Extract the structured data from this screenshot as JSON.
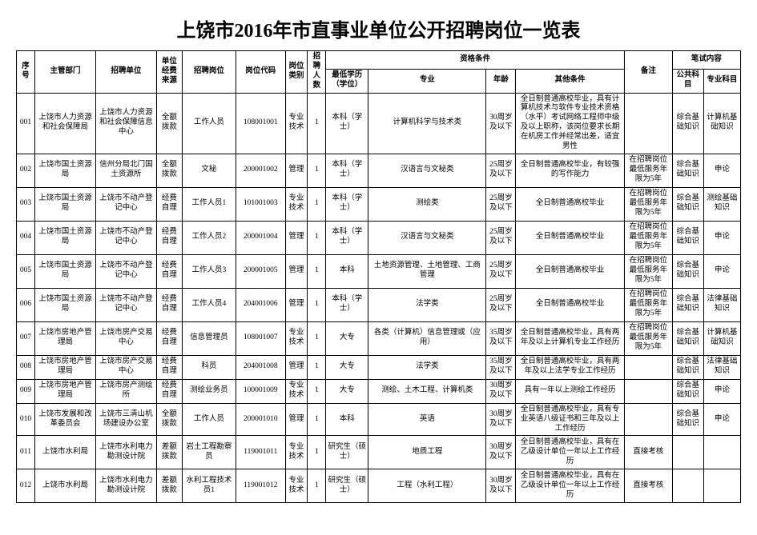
{
  "title": "上饶市2016年市直事业单位公开招聘岗位一览表",
  "headers": {
    "seq": "序号",
    "dept": "主管部门",
    "unit": "招聘单位",
    "fund": "单位经费来源",
    "post": "招聘岗位",
    "code": "岗位代码",
    "cat": "岗位类别",
    "num": "招聘人数",
    "qual": "资格条件",
    "edu": "最低学历（学位）",
    "major": "专业",
    "age": "年龄",
    "other": "其他条件",
    "remark": "备注",
    "exam": "笔试内容",
    "pub": "公共科目",
    "prof": "专业科目"
  },
  "rows": [
    {
      "seq": "001",
      "dept": "上饶市人力资源和社会保障局",
      "unit": "上饶市人力资源和社会保障信息中心",
      "fund": "全额拨款",
      "post": "工作人员",
      "code": "108001001",
      "cat": "专业技术",
      "num": "1",
      "edu": "本科（学士）",
      "major": "计算机科学与技术类",
      "age": "30周岁及以下",
      "other": "全日制普通高校毕业，具有计算机技术与软件专业技术资格（水平）考试网络工程师中级及以上职称，该岗位要求长期在机房工作并经常出差，适宜男性",
      "remark": "",
      "pub": "综合基础知识",
      "prof": "计算机基础知识"
    },
    {
      "seq": "002",
      "dept": "上饶市国土资源局",
      "unit": "信州分局北门国土资源所",
      "fund": "全额拨款",
      "post": "文秘",
      "code": "200001002",
      "cat": "管理",
      "num": "1",
      "edu": "本科（学士）",
      "major": "汉语言与文秘类",
      "age": "25周岁及以下",
      "other": "全日制普通高校毕业，有较强的写作能力",
      "remark": "在招聘岗位最低服务年限为5年",
      "pub": "综合基础知识",
      "prof": "申论"
    },
    {
      "seq": "003",
      "dept": "上饶市国土资源局",
      "unit": "上饶市不动产登记中心",
      "fund": "经费自理",
      "post": "工作人员1",
      "code": "101001003",
      "cat": "专业技术",
      "num": "1",
      "edu": "本科（学士）",
      "major": "测绘类",
      "age": "25周岁及以下",
      "other": "全日制普通高校毕业",
      "remark": "在招聘岗位最低服务年限为5年",
      "pub": "综合基础知识",
      "prof": "测绘基础知识"
    },
    {
      "seq": "004",
      "dept": "上饶市国土资源局",
      "unit": "上饶市不动产登记中心",
      "fund": "经费自理",
      "post": "工作人员2",
      "code": "200001004",
      "cat": "管理",
      "num": "1",
      "edu": "本科（学士）",
      "major": "汉语言与文秘类",
      "age": "25周岁及以下",
      "other": "全日制普通高校毕业",
      "remark": "在招聘岗位最低服务年限为5年",
      "pub": "综合基础知识",
      "prof": "申论"
    },
    {
      "seq": "005",
      "dept": "上饶市国土资源局",
      "unit": "上饶市不动产登记中心",
      "fund": "经费自理",
      "post": "工作人员3",
      "code": "200001005",
      "cat": "管理",
      "num": "1",
      "edu": "本科",
      "major": "土地资源管理、土地管理、工商管理",
      "age": "25周岁及以下",
      "other": "全日制普通高校毕业",
      "remark": "在招聘岗位最低服务年限为5年",
      "pub": "综合基础知识",
      "prof": "申论"
    },
    {
      "seq": "006",
      "dept": "上饶市国土资源局",
      "unit": "上饶市不动产登记中心",
      "fund": "经费自理",
      "post": "工作人员4",
      "code": "204001006",
      "cat": "管理",
      "num": "1",
      "edu": "本科（学士）",
      "major": "法学类",
      "age": "25周岁及以下",
      "other": "全日制普通高校毕业",
      "remark": "在招聘岗位最低服务年限为5年",
      "pub": "综合基础知识",
      "prof": "法律基础知识"
    },
    {
      "seq": "007",
      "dept": "上饶市房地产管理局",
      "unit": "上饶市房产交易中心",
      "fund": "经费自理",
      "post": "信息管理员",
      "code": "108001007",
      "cat": "专业技术",
      "num": "1",
      "edu": "大专",
      "major": "各类（计算机）信息管理或（应用）",
      "age": "35周岁及以下",
      "other": "全日制普通高校毕业，具有两年及以上计算机专业工作经历",
      "remark": "在招聘岗位最低服务年限为5年",
      "pub": "综合基础知识",
      "prof": "计算机基础知识"
    },
    {
      "seq": "008",
      "dept": "上饶市房地产管理局",
      "unit": "上饶市房产交易中心",
      "fund": "经费自理",
      "post": "科员",
      "code": "204001008",
      "cat": "管理",
      "num": "1",
      "edu": "大专",
      "major": "法学类",
      "age": "35周岁及以下",
      "other": "全日制普通高校毕业，具有两年及以上法学专业工作经历",
      "remark": "",
      "pub": "综合基础知识",
      "prof": "法律基础知识"
    },
    {
      "seq": "009",
      "dept": "上饶市房地产管理局",
      "unit": "上饶市房产测绘所",
      "fund": "经费自理",
      "post": "测绘业务员",
      "code": "100001009",
      "cat": "专业技术",
      "num": "1",
      "edu": "大专",
      "major": "测绘、土木工程、计算机类",
      "age": "30周岁及以下",
      "other": "具有一年以上测绘工作经历",
      "remark": "",
      "pub": "综合基础知识",
      "prof": "申论"
    },
    {
      "seq": "010",
      "dept": "上饶市发展和改革委员会",
      "unit": "上饶市三清山机场建设办公室",
      "fund": "全额拨款",
      "post": "工作人员",
      "code": "200001010",
      "cat": "管理",
      "num": "1",
      "edu": "本科",
      "major": "英语",
      "age": "30周岁及以下",
      "other": "全日制普通高校毕业，具有专业英语八级证书和三年及以上工作经历",
      "remark": "",
      "pub": "综合基础知识",
      "prof": "申论"
    },
    {
      "seq": "011",
      "dept": "上饶市水利局",
      "unit": "上饶市水利电力勘测设计院",
      "fund": "差额拨款",
      "post": "岩土工程勘察员",
      "code": "119001011",
      "cat": "专业技术",
      "num": "1",
      "edu": "研究生（硕士）",
      "major": "地质工程",
      "age": "30周岁及以下",
      "other": "全日制普通高校毕业，具有在乙级设计单位一年以上工作经历",
      "remark": "直接考核",
      "pub": "",
      "prof": ""
    },
    {
      "seq": "012",
      "dept": "上饶市水利局",
      "unit": "上饶市水利电力勘测设计院",
      "fund": "差额拨款",
      "post": "水利工程技术员1",
      "code": "119001012",
      "cat": "专业技术",
      "num": "1",
      "edu": "研究生（硕士）",
      "major": "工程（水利工程）",
      "age": "30周岁及以下",
      "other": "全日制普通高校毕业，具有在乙级设计单位一年以上工作经历",
      "remark": "直接考核",
      "pub": "",
      "prof": ""
    }
  ]
}
